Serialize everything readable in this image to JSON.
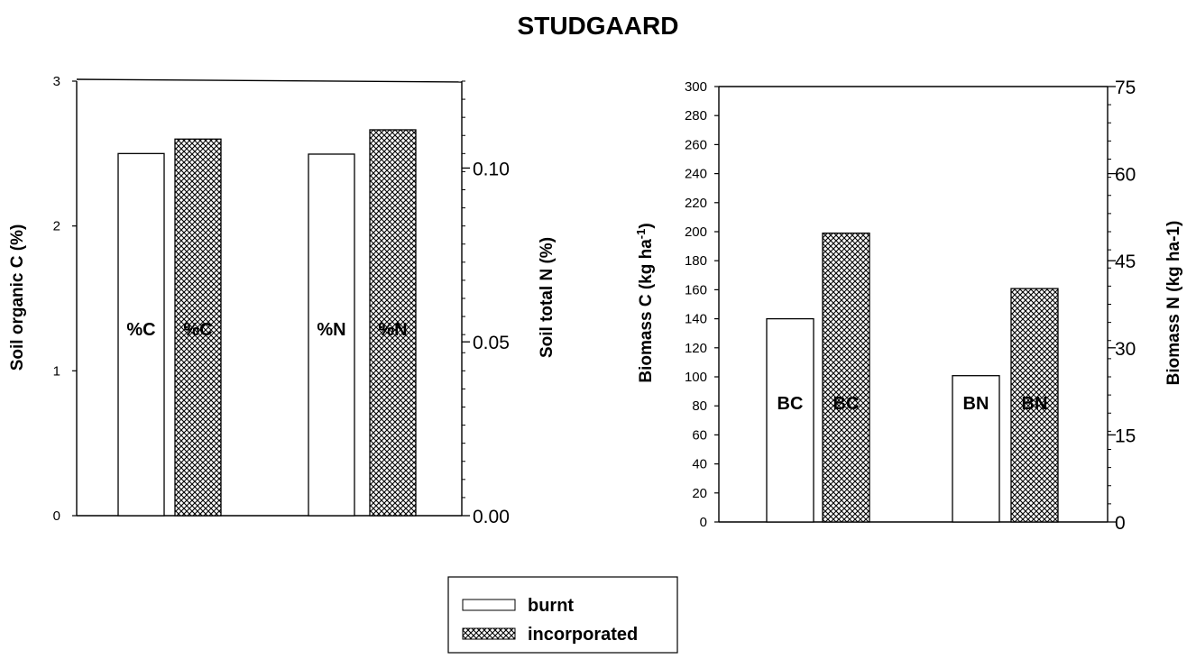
{
  "title": "STUDGAARD",
  "chart_data": [
    {
      "type": "bar",
      "categories": [
        "%C",
        "%N"
      ],
      "series": [
        {
          "name": "burnt",
          "values": [
            2.5,
            0.104
          ],
          "axis": [
            "left",
            "right"
          ]
        },
        {
          "name": "incorporated",
          "values": [
            2.6,
            0.111
          ],
          "axis": [
            "left",
            "right"
          ]
        }
      ],
      "bar_labels": [
        [
          "%C",
          "%C"
        ],
        [
          "%N",
          "%N"
        ]
      ],
      "ylabel": "Soil organic C (%)",
      "ylim": [
        0,
        3
      ],
      "yticks": [
        "0",
        "1",
        "2",
        "3"
      ],
      "y2label": "Soil total N (%)",
      "y2lim": [
        0,
        0.125
      ],
      "y2ticks": [
        "0.00",
        "0.05",
        "0.10"
      ],
      "legend": "bottom-center"
    },
    {
      "type": "bar",
      "categories": [
        "BC",
        "BN"
      ],
      "series": [
        {
          "name": "burnt",
          "values": [
            140,
            25.2
          ],
          "axis": [
            "left",
            "right"
          ]
        },
        {
          "name": "incorporated",
          "values": [
            199,
            40.2
          ],
          "axis": [
            "left",
            "right"
          ]
        }
      ],
      "bar_labels": [
        [
          "BC",
          "BC"
        ],
        [
          "BN",
          "BN"
        ]
      ],
      "ylabel": "Biomass C (kg ha-1)",
      "ylim": [
        0,
        300
      ],
      "yticks": [
        "0",
        "20",
        "40",
        "60",
        "80",
        "100",
        "120",
        "140",
        "160",
        "180",
        "200",
        "220",
        "240",
        "260",
        "280",
        "300"
      ],
      "y2label": "Biomass N (kg ha-1)",
      "y2lim": [
        0,
        75
      ],
      "y2ticks": [
        "0",
        "15",
        "30",
        "45",
        "60",
        "75"
      ],
      "legend": "bottom-center"
    }
  ],
  "legend": {
    "items": [
      {
        "label": "burnt",
        "pattern": "white"
      },
      {
        "label": "incorporated",
        "pattern": "crosshatch"
      }
    ]
  }
}
